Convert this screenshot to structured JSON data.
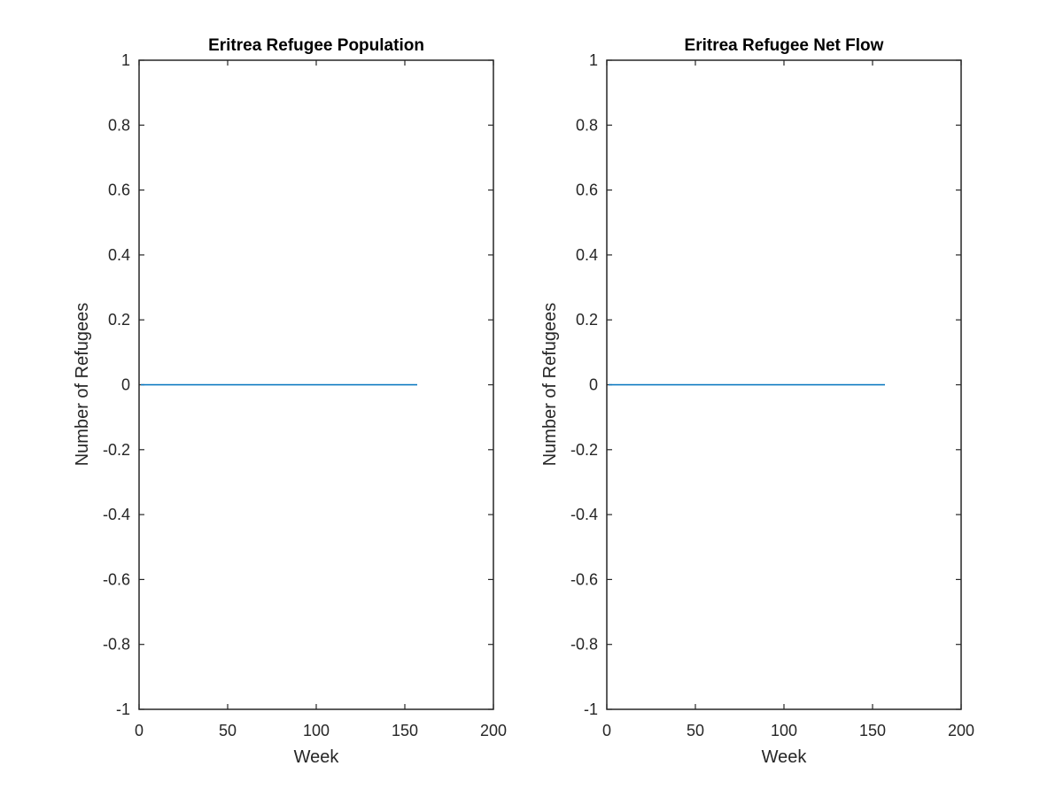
{
  "chart_data": [
    {
      "type": "line",
      "title": "Eritrea Refugee Population",
      "xlabel": "Week",
      "ylabel": "Number of Refugees",
      "xlim": [
        0,
        200
      ],
      "ylim": [
        -1,
        1
      ],
      "xticks": [
        0,
        50,
        100,
        150,
        200
      ],
      "xtick_labels": [
        "0",
        "50",
        "100",
        "150",
        "200"
      ],
      "yticks": [
        -1,
        -0.8,
        -0.6,
        -0.4,
        -0.2,
        0,
        0.2,
        0.4,
        0.6,
        0.8,
        1
      ],
      "ytick_labels": [
        "-1",
        "-0.8",
        "-0.6",
        "-0.4",
        "-0.2",
        "0",
        "0.2",
        "0.4",
        "0.6",
        "0.8",
        "1"
      ],
      "grid": false,
      "series": [
        {
          "x": [
            1,
            157
          ],
          "y": [
            0,
            0
          ],
          "color": "#0072bd"
        }
      ]
    },
    {
      "type": "line",
      "title": "Eritrea Refugee Net Flow",
      "xlabel": "Week",
      "ylabel": "Number of Refugees",
      "xlim": [
        0,
        200
      ],
      "ylim": [
        -1,
        1
      ],
      "xticks": [
        0,
        50,
        100,
        150,
        200
      ],
      "xtick_labels": [
        "0",
        "50",
        "100",
        "150",
        "200"
      ],
      "yticks": [
        -1,
        -0.8,
        -0.6,
        -0.4,
        -0.2,
        0,
        0.2,
        0.4,
        0.6,
        0.8,
        1
      ],
      "ytick_labels": [
        "-1",
        "-0.8",
        "-0.6",
        "-0.4",
        "-0.2",
        "0",
        "0.2",
        "0.4",
        "0.6",
        "0.8",
        "1"
      ],
      "grid": false,
      "series": [
        {
          "x": [
            1,
            157
          ],
          "y": [
            0,
            0
          ],
          "color": "#0072bd"
        }
      ]
    }
  ]
}
